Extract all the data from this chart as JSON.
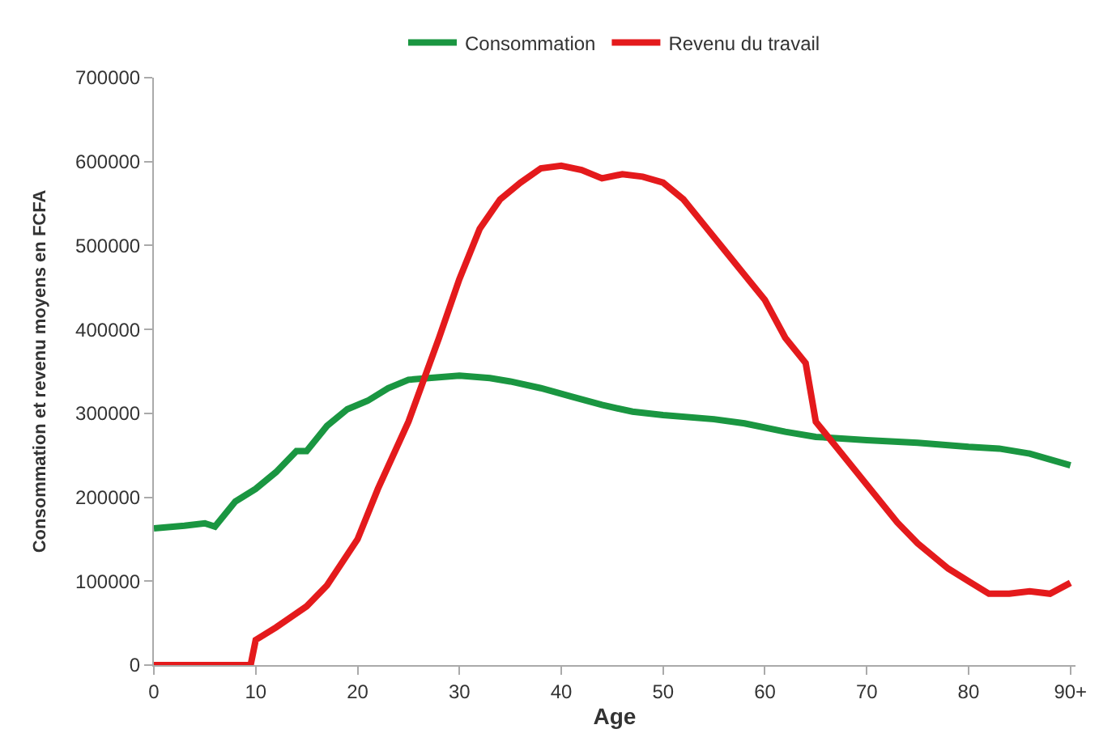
{
  "chart_data": {
    "type": "line",
    "xlabel": "Age",
    "ylabel": "Consommation et revenu moyens en FCFA",
    "xlim": [
      0,
      90.5
    ],
    "xticks": [
      0,
      10,
      20,
      30,
      40,
      50,
      60,
      70,
      80,
      {
        "value": 90,
        "label": "90+"
      }
    ],
    "ylim": [
      0,
      700000
    ],
    "yticks": [
      0,
      100000,
      200000,
      300000,
      400000,
      500000,
      600000,
      700000
    ],
    "grid": false,
    "legend": "top",
    "marker": "none",
    "line_style": "solid",
    "series": [
      {
        "name": "Consommation",
        "color": "#1a9641",
        "x": [
          0,
          3,
          5,
          6,
          8,
          10,
          12,
          14,
          15,
          17,
          19,
          21,
          23,
          25,
          27,
          30,
          33,
          35,
          38,
          41,
          44,
          47,
          50,
          55,
          58,
          62,
          65,
          70,
          75,
          80,
          83,
          86,
          90
        ],
        "values": [
          163000,
          166000,
          169000,
          165000,
          195000,
          210000,
          230000,
          255000,
          255000,
          285000,
          305000,
          315000,
          330000,
          340000,
          342000,
          345000,
          342000,
          338000,
          330000,
          320000,
          310000,
          302000,
          298000,
          293000,
          288000,
          278000,
          272000,
          268000,
          265000,
          260000,
          258000,
          252000,
          238000
        ]
      },
      {
        "name": "Revenu du travail",
        "color": "#e41a1c",
        "x": [
          0,
          9.5,
          10,
          12,
          15,
          17,
          20,
          22,
          25,
          28,
          30,
          32,
          34,
          36,
          38,
          40,
          42,
          44,
          46,
          48,
          50,
          52,
          54,
          56,
          58,
          60,
          62,
          64,
          65,
          67,
          70,
          73,
          75,
          78,
          80,
          82,
          84,
          86,
          88,
          90
        ],
        "values": [
          0,
          0,
          30000,
          45000,
          70000,
          95000,
          150000,
          210000,
          290000,
          390000,
          460000,
          520000,
          555000,
          575000,
          592000,
          595000,
          590000,
          580000,
          585000,
          582000,
          575000,
          555000,
          525000,
          495000,
          465000,
          435000,
          390000,
          360000,
          290000,
          260000,
          215000,
          170000,
          145000,
          115000,
          100000,
          85000,
          85000,
          88000,
          85000,
          98000
        ]
      }
    ]
  }
}
